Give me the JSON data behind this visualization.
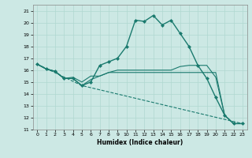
{
  "xlabel": "Humidex (Indice chaleur)",
  "background_color": "#cce8e4",
  "grid_color": "#b0d8d0",
  "line_color": "#1a7a6e",
  "xlim": [
    -0.5,
    23.5
  ],
  "ylim": [
    11,
    21.5
  ],
  "yticks": [
    11,
    12,
    13,
    14,
    15,
    16,
    17,
    18,
    19,
    20,
    21
  ],
  "xticks": [
    0,
    1,
    2,
    3,
    4,
    5,
    6,
    7,
    8,
    9,
    10,
    11,
    12,
    13,
    14,
    15,
    16,
    17,
    18,
    19,
    20,
    21,
    22,
    23
  ],
  "lines": [
    {
      "x": [
        0,
        1,
        2,
        3,
        4,
        5,
        6,
        7,
        8,
        9,
        10,
        11,
        12,
        13,
        14,
        15,
        16,
        17,
        18,
        19,
        20,
        21,
        22,
        23
      ],
      "y": [
        16.5,
        16.1,
        15.9,
        15.3,
        15.3,
        14.7,
        15.0,
        16.4,
        16.7,
        17.0,
        18.0,
        20.2,
        20.1,
        20.6,
        19.8,
        20.2,
        19.1,
        18.0,
        16.4,
        15.3,
        13.7,
        12.2,
        11.5,
        11.5
      ],
      "marker": "D",
      "markersize": 2.0,
      "linewidth": 1.0,
      "linestyle": "-"
    },
    {
      "x": [
        0,
        1,
        2,
        3,
        4,
        5,
        6,
        7,
        8,
        9,
        10,
        11,
        12,
        13,
        14,
        15,
        16,
        17,
        18,
        19,
        20,
        21,
        22,
        23
      ],
      "y": [
        16.5,
        16.1,
        15.9,
        15.3,
        15.3,
        14.7,
        15.2,
        15.5,
        15.8,
        16.0,
        16.0,
        16.0,
        16.0,
        16.0,
        16.0,
        16.0,
        16.3,
        16.4,
        16.4,
        16.4,
        15.4,
        12.2,
        11.5,
        11.5
      ],
      "marker": null,
      "markersize": 0,
      "linewidth": 0.8,
      "linestyle": "-"
    },
    {
      "x": [
        0,
        1,
        2,
        3,
        4,
        5,
        6,
        7,
        8,
        9,
        10,
        11,
        12,
        13,
        14,
        15,
        16,
        17,
        18,
        19,
        20,
        21,
        22,
        23
      ],
      "y": [
        16.5,
        16.1,
        15.9,
        15.3,
        15.4,
        15.0,
        15.5,
        15.5,
        15.8,
        15.8,
        15.8,
        15.8,
        15.8,
        15.8,
        15.8,
        15.8,
        15.8,
        15.8,
        15.8,
        15.8,
        15.8,
        12.2,
        11.5,
        11.5
      ],
      "marker": null,
      "markersize": 0,
      "linewidth": 0.8,
      "linestyle": "-"
    },
    {
      "x": [
        0,
        5,
        23
      ],
      "y": [
        16.5,
        14.7,
        11.5
      ],
      "marker": null,
      "markersize": 0,
      "linewidth": 0.8,
      "linestyle": "--"
    }
  ]
}
